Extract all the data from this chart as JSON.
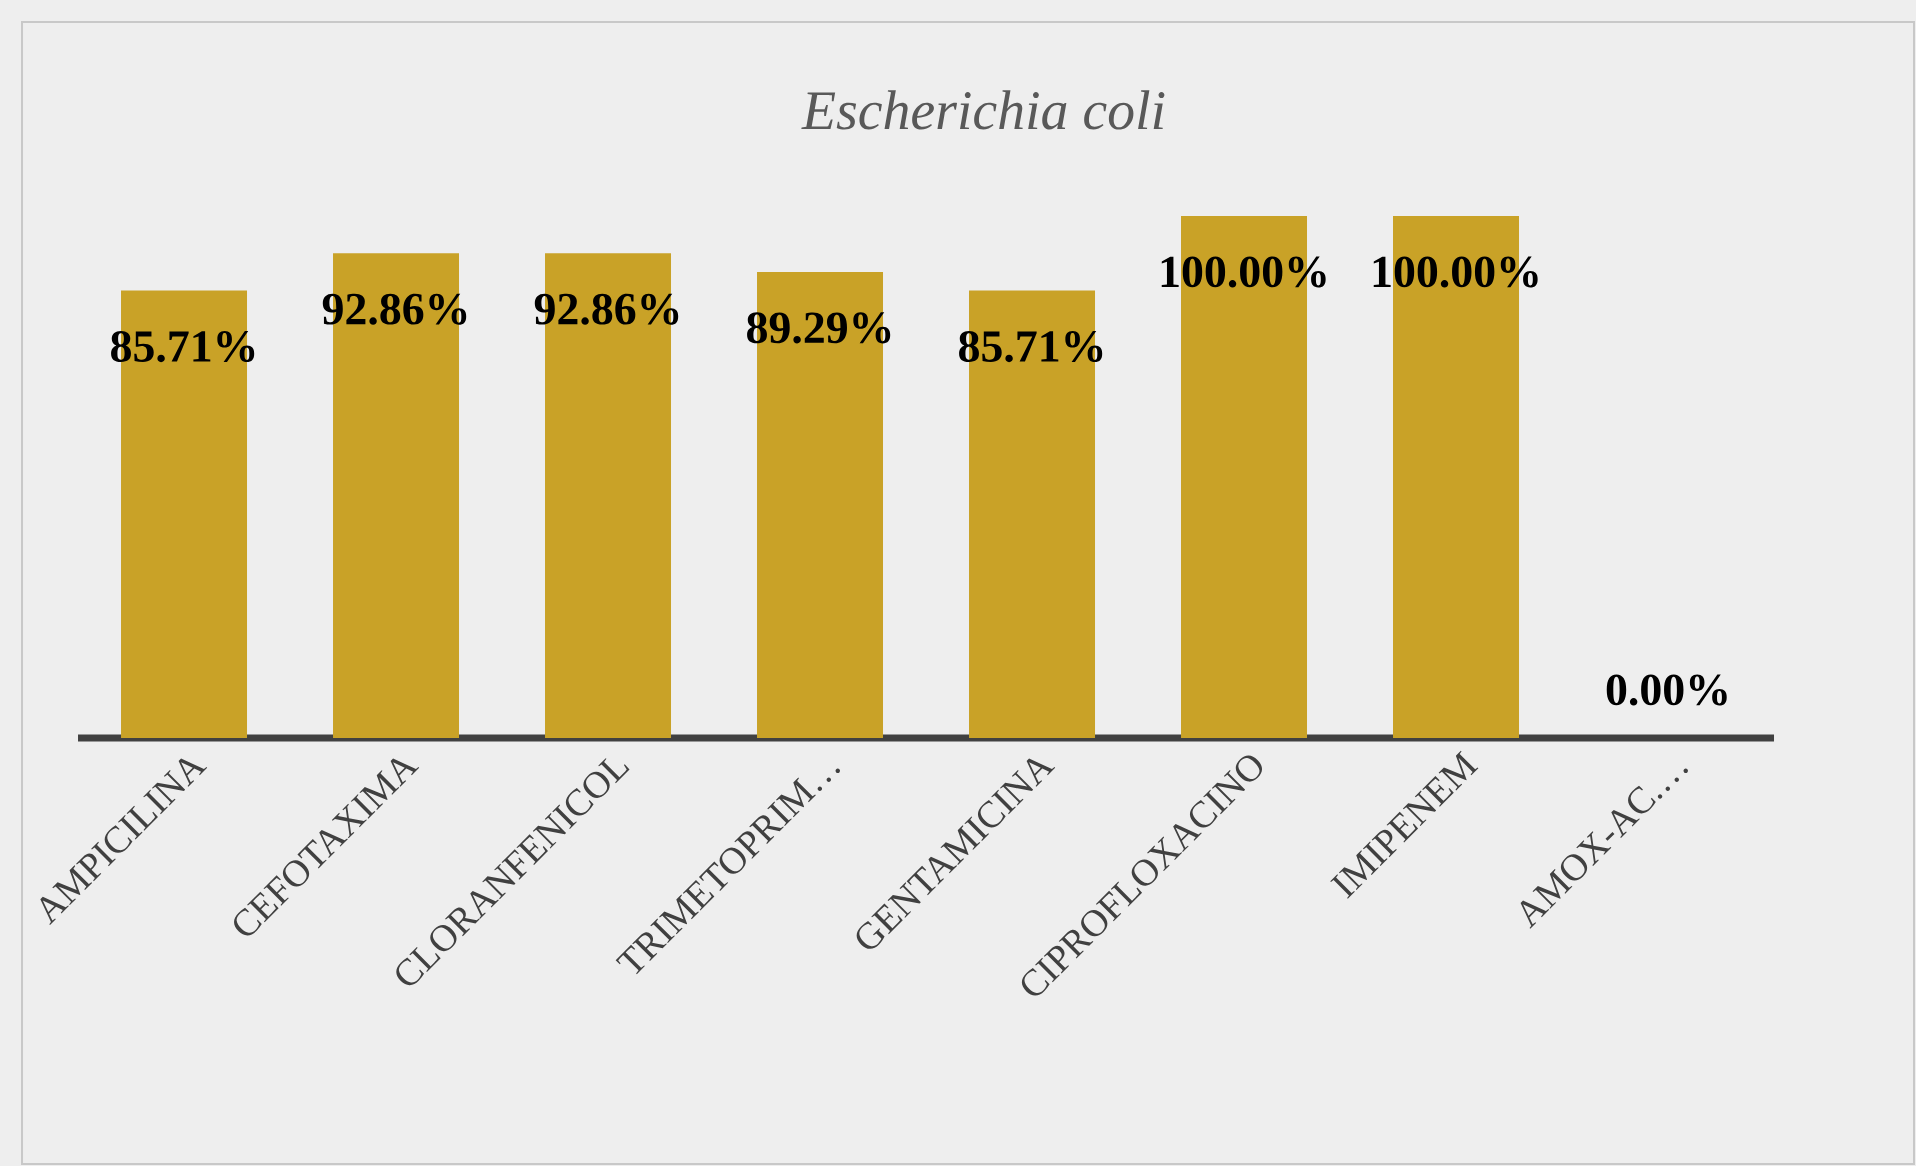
{
  "chart_data": {
    "type": "bar",
    "title": "*Escherichia coli*",
    "categories": [
      "AMPICILINA",
      "CEFOTAXIMA",
      "CLORANFENICOL",
      "TRIMETOPRIM…",
      "GENTAMICINA",
      "CIPROFLOXACINO",
      "IMIPENEM",
      "AMOX-AC.…"
    ],
    "values": [
      85.71,
      92.86,
      92.86,
      89.29,
      85.71,
      100.0,
      100.0,
      0.0
    ],
    "value_labels": [
      "85.71%",
      "92.86%",
      "92.86%",
      "89.29%",
      "85.71%",
      "100.00%",
      "100.00%",
      "0.00%"
    ],
    "color": "#c9a227",
    "ylim": [
      0,
      100
    ],
    "tick_labels": "x"
  }
}
